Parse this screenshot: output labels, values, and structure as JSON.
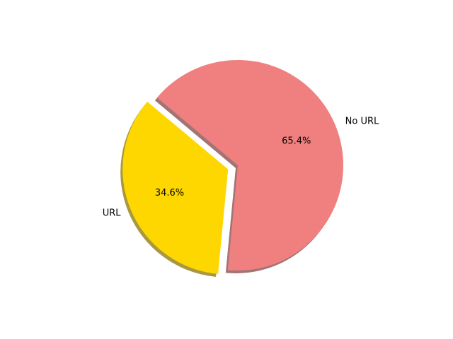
{
  "chart_data": {
    "type": "pie",
    "title": "",
    "shadow": true,
    "start_angle_deg": 140,
    "direction": "counterclockwise",
    "slices": [
      {
        "label": "URL",
        "value": 34.6,
        "pct_label": "34.6%",
        "color": "#FFD700",
        "exploded": true
      },
      {
        "label": "No URL",
        "value": 65.4,
        "pct_label": "65.4%",
        "color": "#F08080",
        "exploded": false
      }
    ]
  }
}
